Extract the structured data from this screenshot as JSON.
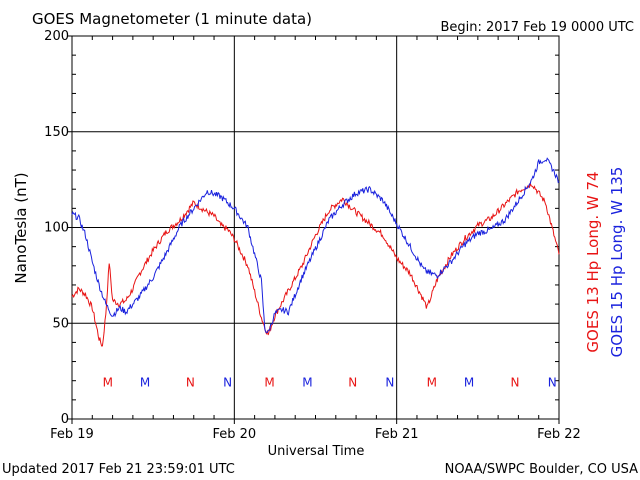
{
  "header": {
    "title": "GOES Magnetometer (1 minute data)",
    "begin": "Begin:  2017 Feb 19 0000 UTC"
  },
  "footer": {
    "updated": "Updated 2017 Feb 21 23:59:01 UTC",
    "credit": "NOAA/SWPC Boulder, CO USA"
  },
  "chart_data": {
    "type": "line",
    "xlabel": "Universal Time",
    "ylabel": "NanoTesla (nT)",
    "ylim": [
      0,
      200
    ],
    "xlim": [
      0,
      72
    ],
    "x_unit": "hours since 2017 Feb 19 0000 UTC",
    "yticks": [
      0,
      50,
      100,
      150,
      200
    ],
    "ytick_labels": [
      "0",
      "50",
      "100",
      "150",
      "200"
    ],
    "xticks": [
      0,
      24,
      48,
      72
    ],
    "xtick_labels": [
      "Feb 19",
      "Feb 20",
      "Feb 21",
      "Feb 22"
    ],
    "grid": true,
    "series": [
      {
        "name": "GOES 13 Hp  Long. W 74",
        "color": "#e81414",
        "x": [
          0,
          1,
          2,
          3,
          4,
          4.5,
          5,
          5.5,
          6,
          7,
          8,
          9,
          10,
          12,
          14,
          16,
          18,
          20,
          21,
          22,
          23,
          24,
          26,
          28,
          28.5,
          29,
          30,
          32,
          34,
          36,
          38,
          40,
          42,
          44,
          46,
          47,
          48,
          50,
          52,
          52.5,
          53,
          54,
          56,
          58,
          60,
          62,
          64,
          66,
          68,
          70,
          72
        ],
        "y": [
          64,
          68,
          65,
          58,
          42,
          38,
          55,
          82,
          62,
          60,
          62,
          68,
          76,
          88,
          98,
          104,
          113,
          108,
          106,
          101,
          99,
          94,
          80,
          53,
          48,
          44,
          54,
          67,
          80,
          96,
          109,
          115,
          108,
          102,
          96,
          90,
          84,
          76,
          62,
          58,
          63,
          73,
          85,
          94,
          101,
          105,
          112,
          119,
          123,
          113,
          86
        ]
      },
      {
        "name": "GOES 15 Hp  Long. W 135",
        "color": "#1a22dd",
        "x": [
          0,
          1,
          2,
          3,
          4,
          5,
          6,
          7,
          8,
          10,
          12,
          14,
          16,
          18,
          20,
          22,
          24,
          26,
          28,
          28.5,
          29,
          30,
          31,
          32,
          34,
          36,
          38,
          40,
          42,
          44,
          46,
          48,
          50,
          52,
          53,
          54,
          56,
          58,
          60,
          62,
          64,
          66,
          68,
          69,
          70,
          71,
          72
        ],
        "y": [
          107,
          105,
          96,
          82,
          70,
          60,
          54,
          58,
          56,
          64,
          74,
          87,
          101,
          110,
          119,
          116,
          110,
          100,
          72,
          47,
          45,
          55,
          57,
          56,
          74,
          89,
          104,
          112,
          118,
          120,
          114,
          102,
          90,
          78,
          76,
          75,
          82,
          91,
          97,
          99,
          104,
          114,
          125,
          134,
          136,
          131,
          124
        ]
      }
    ],
    "legend": {
      "placement": "right, vertical",
      "entries": [
        {
          "label": "GOES 13 Hp  Long. W 74",
          "color": "#e81414"
        },
        {
          "label": "GOES 15 Hp  Long. W 135",
          "color": "#1a22dd"
        }
      ]
    },
    "markers": {
      "y": 17,
      "items": [
        {
          "letter": "M",
          "x": 5.3,
          "color": "#e81414"
        },
        {
          "letter": "M",
          "x": 10.8,
          "color": "#1a22dd"
        },
        {
          "letter": "N",
          "x": 17.5,
          "color": "#e81414"
        },
        {
          "letter": "N",
          "x": 23.0,
          "color": "#1a22dd"
        },
        {
          "letter": "M",
          "x": 29.2,
          "color": "#e81414"
        },
        {
          "letter": "M",
          "x": 34.8,
          "color": "#1a22dd"
        },
        {
          "letter": "N",
          "x": 41.5,
          "color": "#e81414"
        },
        {
          "letter": "N",
          "x": 47.0,
          "color": "#1a22dd"
        },
        {
          "letter": "M",
          "x": 53.2,
          "color": "#e81414"
        },
        {
          "letter": "M",
          "x": 58.7,
          "color": "#1a22dd"
        },
        {
          "letter": "N",
          "x": 65.5,
          "color": "#e81414"
        },
        {
          "letter": "N",
          "x": 71.0,
          "color": "#1a22dd"
        }
      ]
    }
  }
}
